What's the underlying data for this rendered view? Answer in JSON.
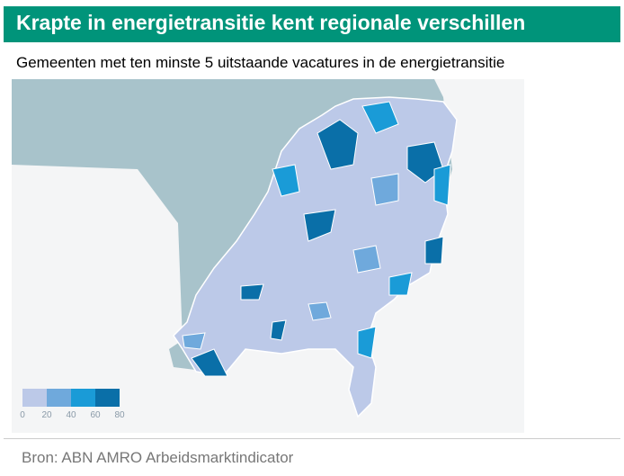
{
  "header": {
    "title": "Krapte in energietransitie kent regionale verschillen",
    "subtitle": "Gemeenten met ten minste 5 uitstaande vacatures in de energietransitie"
  },
  "legend": {
    "colors": [
      "#bcc9e8",
      "#6fa9dc",
      "#1a9bd7",
      "#0a6fa8"
    ],
    "ticks": [
      0,
      20,
      40,
      60,
      80
    ]
  },
  "footer": {
    "source": "Bron: ABN AMRO Arbeidsmarktindicator"
  }
}
